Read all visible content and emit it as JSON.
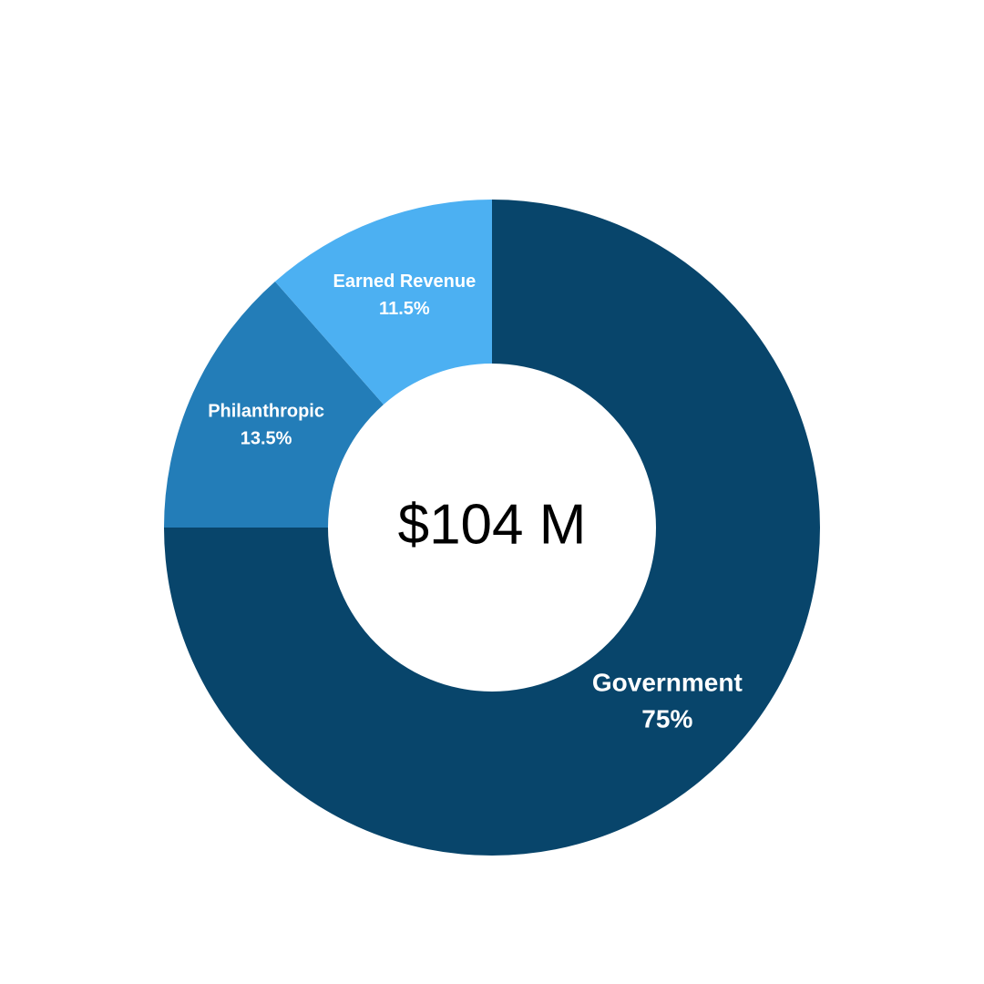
{
  "chart_data": {
    "type": "donut",
    "center_label": "$104 M",
    "categories": [
      "Government",
      "Philanthropic",
      "Earned Revenue"
    ],
    "values": [
      75,
      13.5,
      11.5
    ],
    "value_labels": [
      "75%",
      "13.5%",
      "11.5%"
    ],
    "colors": [
      "#08456b",
      "#237db8",
      "#4cb0f2"
    ]
  }
}
